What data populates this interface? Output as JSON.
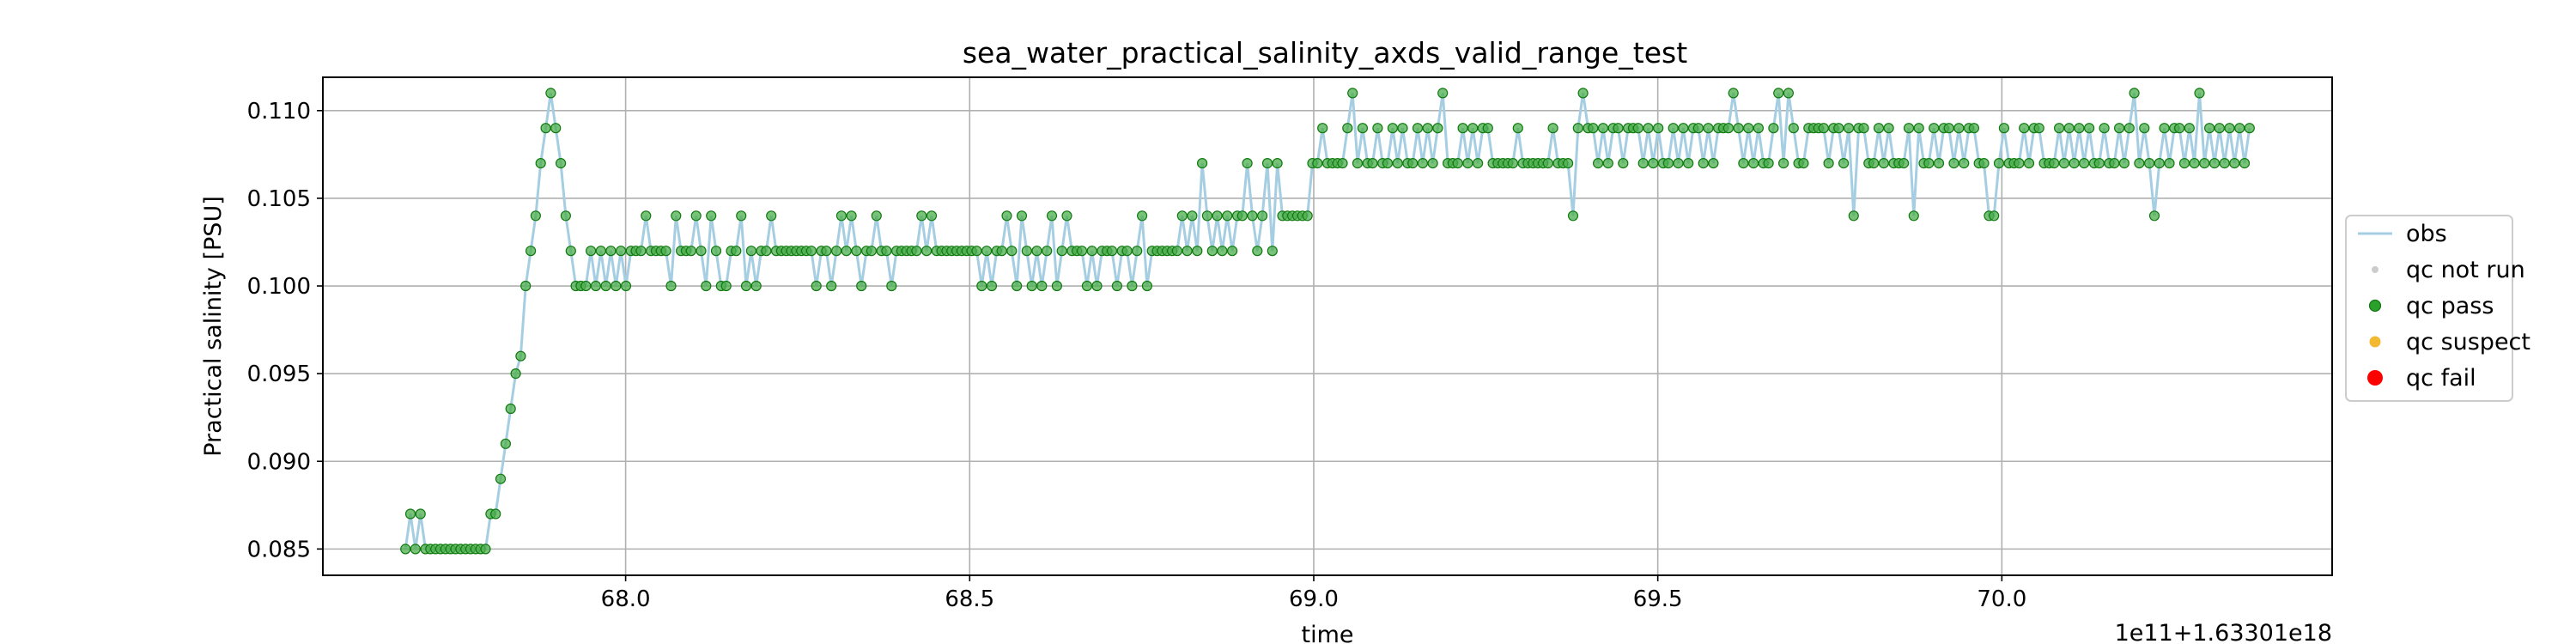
{
  "chart_data": {
    "type": "line",
    "title": "sea_water_practical_salinity_axds_valid_range_test",
    "xlabel": "time",
    "ylabel": "Practical salinity [PSU]",
    "x_offset_label": "1e11+1.63301e18",
    "xlim": [
      67.56,
      70.48
    ],
    "ylim": [
      0.0835,
      0.1119
    ],
    "xticks": [
      "68.0",
      "68.5",
      "69.0",
      "69.5",
      "70.0"
    ],
    "yticks": [
      "0.085",
      "0.090",
      "0.095",
      "0.100",
      "0.105",
      "0.110"
    ],
    "grid": true,
    "legend_position": "center-right outside",
    "legend": [
      {
        "label": "obs",
        "marker": "line",
        "color": "#a6cee3"
      },
      {
        "label": "qc not run",
        "marker": "dot",
        "color": "#cccccc"
      },
      {
        "label": "qc pass",
        "marker": "dot",
        "color": "#2ca02c"
      },
      {
        "label": "qc suspect",
        "marker": "dot",
        "color": "#f2b830"
      },
      {
        "label": "qc fail",
        "marker": "dot",
        "color": "#ff0000"
      }
    ],
    "colors": {
      "obs_line": "#a6cee3",
      "pass_fill": "#4cae4c",
      "pass_edge": "#107a10"
    },
    "series": [
      {
        "name": "qc pass",
        "x_start": 67.68,
        "x_end": 70.36,
        "values": [
          0.085,
          0.087,
          0.085,
          0.087,
          0.085,
          0.085,
          0.085,
          0.085,
          0.085,
          0.085,
          0.085,
          0.085,
          0.085,
          0.085,
          0.085,
          0.085,
          0.085,
          0.087,
          0.087,
          0.089,
          0.091,
          0.093,
          0.095,
          0.096,
          0.1,
          0.102,
          0.104,
          0.107,
          0.109,
          0.111,
          0.109,
          0.107,
          0.104,
          0.102,
          0.1,
          0.1,
          0.1,
          0.102,
          0.1,
          0.102,
          0.1,
          0.102,
          0.1,
          0.102,
          0.1,
          0.102,
          0.102,
          0.102,
          0.104,
          0.102,
          0.102,
          0.102,
          0.102,
          0.1,
          0.104,
          0.102,
          0.102,
          0.102,
          0.104,
          0.102,
          0.1,
          0.104,
          0.102,
          0.1,
          0.1,
          0.102,
          0.102,
          0.104,
          0.1,
          0.102,
          0.1,
          0.102,
          0.102,
          0.104,
          0.102,
          0.102,
          0.102,
          0.102,
          0.102,
          0.102,
          0.102,
          0.102,
          0.1,
          0.102,
          0.102,
          0.1,
          0.102,
          0.104,
          0.102,
          0.104,
          0.102,
          0.1,
          0.102,
          0.102,
          0.104,
          0.102,
          0.102,
          0.1,
          0.102,
          0.102,
          0.102,
          0.102,
          0.102,
          0.104,
          0.102,
          0.104,
          0.102,
          0.102,
          0.102,
          0.102,
          0.102,
          0.102,
          0.102,
          0.102,
          0.102,
          0.1,
          0.102,
          0.1,
          0.102,
          0.102,
          0.104,
          0.102,
          0.1,
          0.104,
          0.102,
          0.1,
          0.102,
          0.1,
          0.102,
          0.104,
          0.1,
          0.102,
          0.104,
          0.102,
          0.102,
          0.102,
          0.1,
          0.102,
          0.1,
          0.102,
          0.102,
          0.102,
          0.1,
          0.102,
          0.102,
          0.1,
          0.102,
          0.104,
          0.1,
          0.102,
          0.102,
          0.102,
          0.102,
          0.102,
          0.102,
          0.104,
          0.102,
          0.104,
          0.102,
          0.107,
          0.104,
          0.102,
          0.104,
          0.102,
          0.104,
          0.102,
          0.104,
          0.104,
          0.107,
          0.104,
          0.102,
          0.104,
          0.107,
          0.102,
          0.107,
          0.104,
          0.104,
          0.104,
          0.104,
          0.104,
          0.104,
          0.107,
          0.107,
          0.109,
          0.107,
          0.107,
          0.107,
          0.107,
          0.109,
          0.111,
          0.107,
          0.109,
          0.107,
          0.107,
          0.109,
          0.107,
          0.107,
          0.109,
          0.107,
          0.109,
          0.107,
          0.107,
          0.109,
          0.107,
          0.109,
          0.107,
          0.109,
          0.111,
          0.107,
          0.107,
          0.107,
          0.109,
          0.107,
          0.109,
          0.107,
          0.109,
          0.109,
          0.107,
          0.107,
          0.107,
          0.107,
          0.107,
          0.109,
          0.107,
          0.107,
          0.107,
          0.107,
          0.107,
          0.107,
          0.109,
          0.107,
          0.107,
          0.107,
          0.104,
          0.109,
          0.111,
          0.109,
          0.109,
          0.107,
          0.109,
          0.107,
          0.109,
          0.109,
          0.107,
          0.109,
          0.109,
          0.109,
          0.107,
          0.109,
          0.107,
          0.109,
          0.107,
          0.107,
          0.109,
          0.107,
          0.109,
          0.107,
          0.109,
          0.109,
          0.107,
          0.109,
          0.107,
          0.109,
          0.109,
          0.109,
          0.111,
          0.109,
          0.107,
          0.109,
          0.107,
          0.109,
          0.107,
          0.107,
          0.109,
          0.111,
          0.107,
          0.111,
          0.109,
          0.107,
          0.107,
          0.109,
          0.109,
          0.109,
          0.109,
          0.107,
          0.109,
          0.109,
          0.107,
          0.109,
          0.104,
          0.109,
          0.109,
          0.107,
          0.107,
          0.109,
          0.107,
          0.109,
          0.107,
          0.107,
          0.107,
          0.109,
          0.104,
          0.109,
          0.107,
          0.107,
          0.109,
          0.107,
          0.109,
          0.109,
          0.107,
          0.109,
          0.107,
          0.109,
          0.109,
          0.107,
          0.107,
          0.104,
          0.104,
          0.107,
          0.109,
          0.107,
          0.107,
          0.107,
          0.109,
          0.107,
          0.109,
          0.109,
          0.107,
          0.107,
          0.107,
          0.109,
          0.107,
          0.109,
          0.107,
          0.109,
          0.107,
          0.109,
          0.107,
          0.107,
          0.109,
          0.107,
          0.107,
          0.109,
          0.107,
          0.109,
          0.111,
          0.107,
          0.109,
          0.107,
          0.104,
          0.107,
          0.109,
          0.107,
          0.109,
          0.109,
          0.107,
          0.109,
          0.107,
          0.111,
          0.107,
          0.109,
          0.107,
          0.109,
          0.107,
          0.109,
          0.107,
          0.109,
          0.107,
          0.109
        ]
      }
    ]
  }
}
